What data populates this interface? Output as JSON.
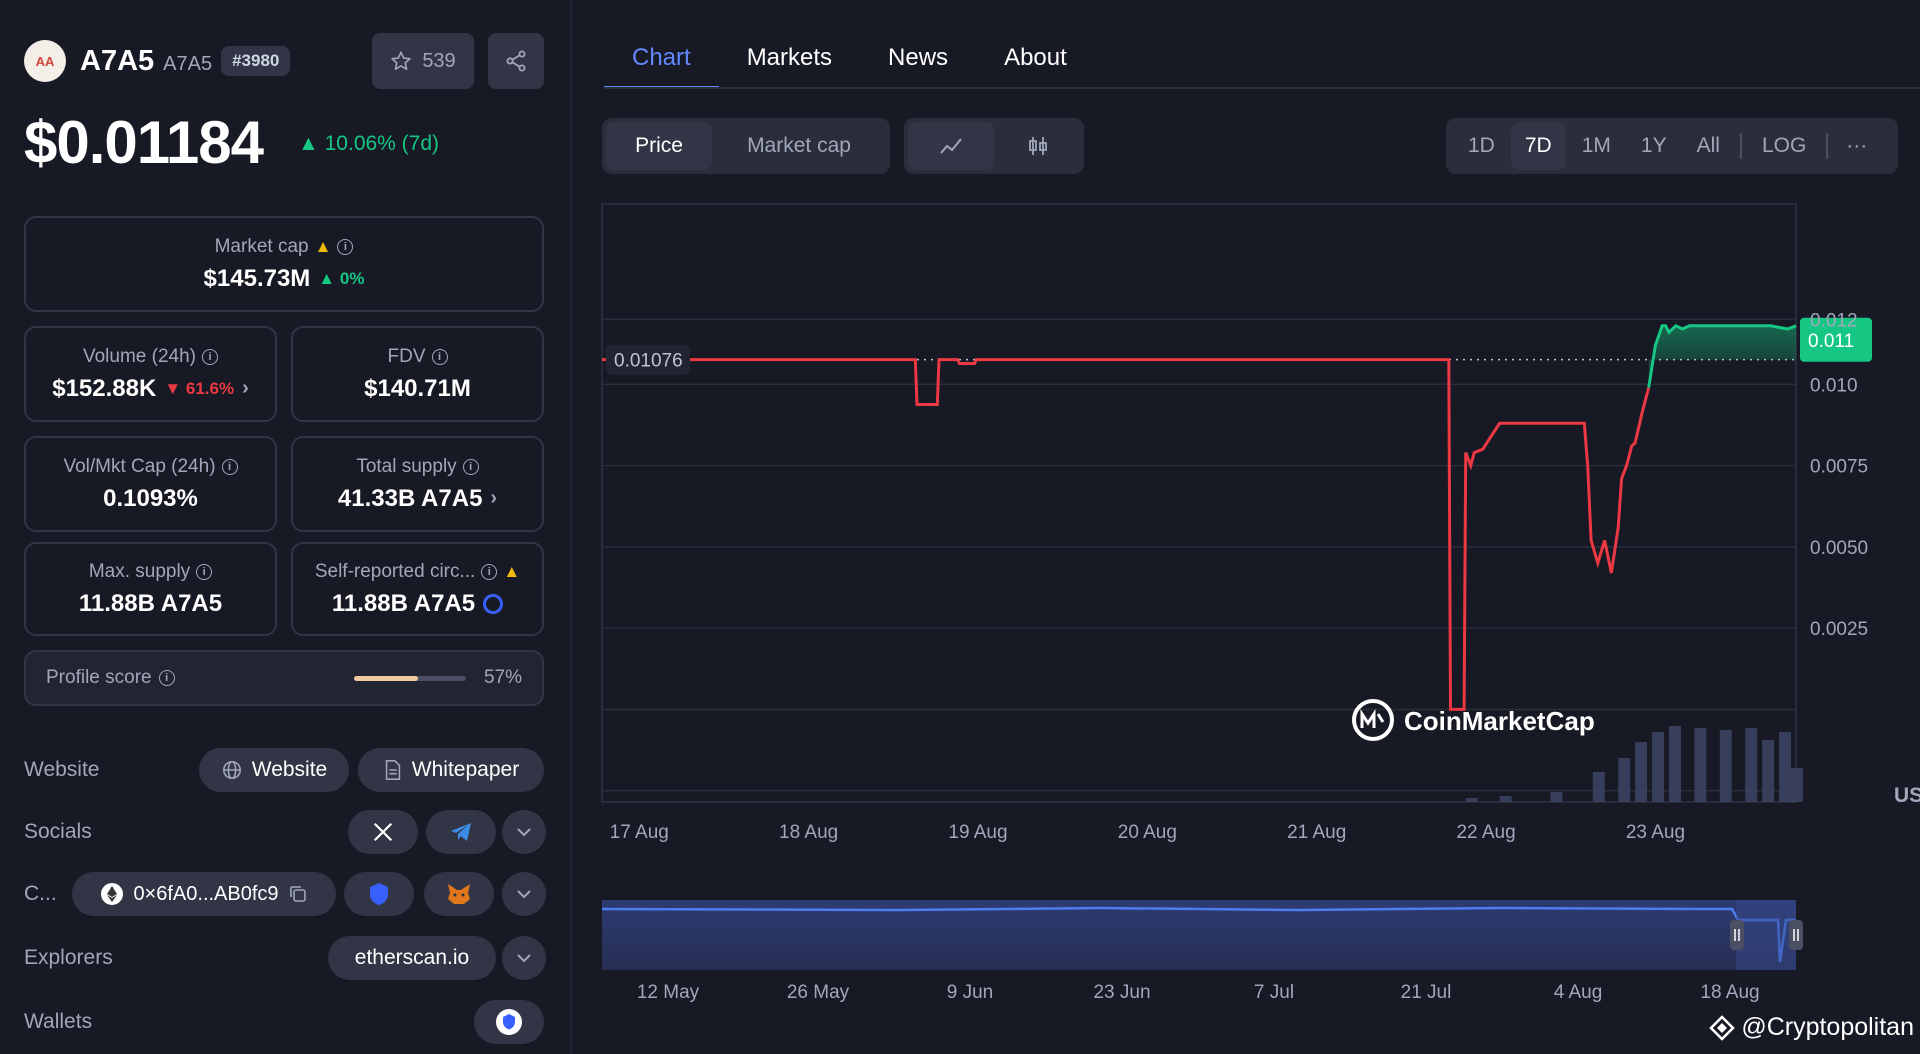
{
  "coin": {
    "logo_text": "AA",
    "name": "A7A5",
    "symbol": "A7A5",
    "rank": "#3980",
    "watchlist_count": "539",
    "price": "$0.01184",
    "change": "10.06% (7d)"
  },
  "stats": {
    "market_cap": {
      "label": "Market cap",
      "value": "$145.73M",
      "change": "0%"
    },
    "volume": {
      "label": "Volume (24h)",
      "value": "$152.88K",
      "change": "61.6%"
    },
    "fdv": {
      "label": "FDV",
      "value": "$140.71M"
    },
    "vol_mkt": {
      "label": "Vol/Mkt Cap (24h)",
      "value": "0.1093%"
    },
    "total_supply": {
      "label": "Total supply",
      "value": "41.33B A7A5"
    },
    "max_supply": {
      "label": "Max. supply",
      "value": "11.88B A7A5"
    },
    "self_reported": {
      "label": "Self-reported circ...",
      "value": "11.88B A7A5"
    }
  },
  "profile": {
    "label": "Profile score",
    "value": "57%",
    "fraction": 0.57
  },
  "links": {
    "website_label": "Website",
    "website_btn": "Website",
    "whitepaper_btn": "Whitepaper",
    "socials_label": "Socials",
    "contracts_label": "C...",
    "contract_addr": "0×6fA0...AB0fc9",
    "explorers_label": "Explorers",
    "explorer": "etherscan.io",
    "wallets_label": "Wallets"
  },
  "tabs": [
    "Chart",
    "Markets",
    "News",
    "About"
  ],
  "controls": {
    "price": "Price",
    "market_cap": "Market cap",
    "ranges": [
      "1D",
      "7D",
      "1M",
      "1Y",
      "All"
    ],
    "log": "LOG",
    "more": "···"
  },
  "chart_data": {
    "type": "line",
    "x_ticks": [
      "17 Aug",
      "18 Aug",
      "19 Aug",
      "20 Aug",
      "21 Aug",
      "22 Aug",
      "23 Aug"
    ],
    "y_ticks": [
      "0.012",
      "0.010",
      "0.0075",
      "0.0050",
      "0.0025"
    ],
    "y_tick_values": [
      0.012,
      0.01,
      0.0075,
      0.005,
      0.0025
    ],
    "ylim": [
      -0.0025,
      0.0145
    ],
    "reference_label": "0.01076",
    "reference_value": 0.01076,
    "current_label": "0.011",
    "currency": "USD",
    "watermark": "CoinMarketCap",
    "series_t": [
      0,
      1.85,
      1.86,
      1.98,
      1.99,
      2.1,
      2.11,
      2.2,
      2.21,
      2.3,
      5.0,
      5.01,
      5.04,
      5.06,
      5.09,
      5.1,
      5.13,
      5.15,
      5.2,
      5.3,
      5.8,
      5.82,
      5.84,
      5.88,
      5.92,
      5.96,
      6.0,
      6.02,
      6.05,
      6.08,
      6.1,
      6.14,
      6.18,
      6.22,
      6.26,
      6.28,
      6.3,
      6.34,
      6.38,
      6.42,
      6.5,
      6.7,
      6.8,
      6.9,
      7.0,
      7.05
    ],
    "series_v": [
      0.01076,
      0.01076,
      0.00938,
      0.00938,
      0.01076,
      0.01076,
      0.01064,
      0.01064,
      0.01076,
      0.01076,
      0.01076,
      0.0,
      0.0,
      0.0,
      0.0,
      0.0079,
      0.0075,
      0.0079,
      0.008,
      0.0088,
      0.0088,
      0.0075,
      0.0052,
      0.0045,
      0.0052,
      0.0042,
      0.0056,
      0.0071,
      0.0075,
      0.0081,
      0.0082,
      0.0091,
      0.0099,
      0.0112,
      0.0118,
      0.0118,
      0.0116,
      0.0118,
      0.0117,
      0.0118,
      0.0118,
      0.0118,
      0.0118,
      0.0118,
      0.0117,
      0.0118
    ],
    "nav_ticks": [
      "12 May",
      "26 May",
      "9 Jun",
      "23 Jun",
      "7 Jul",
      "21 Jul",
      "4 Aug",
      "18 Aug"
    ]
  },
  "credit": "@Cryptopolitan"
}
